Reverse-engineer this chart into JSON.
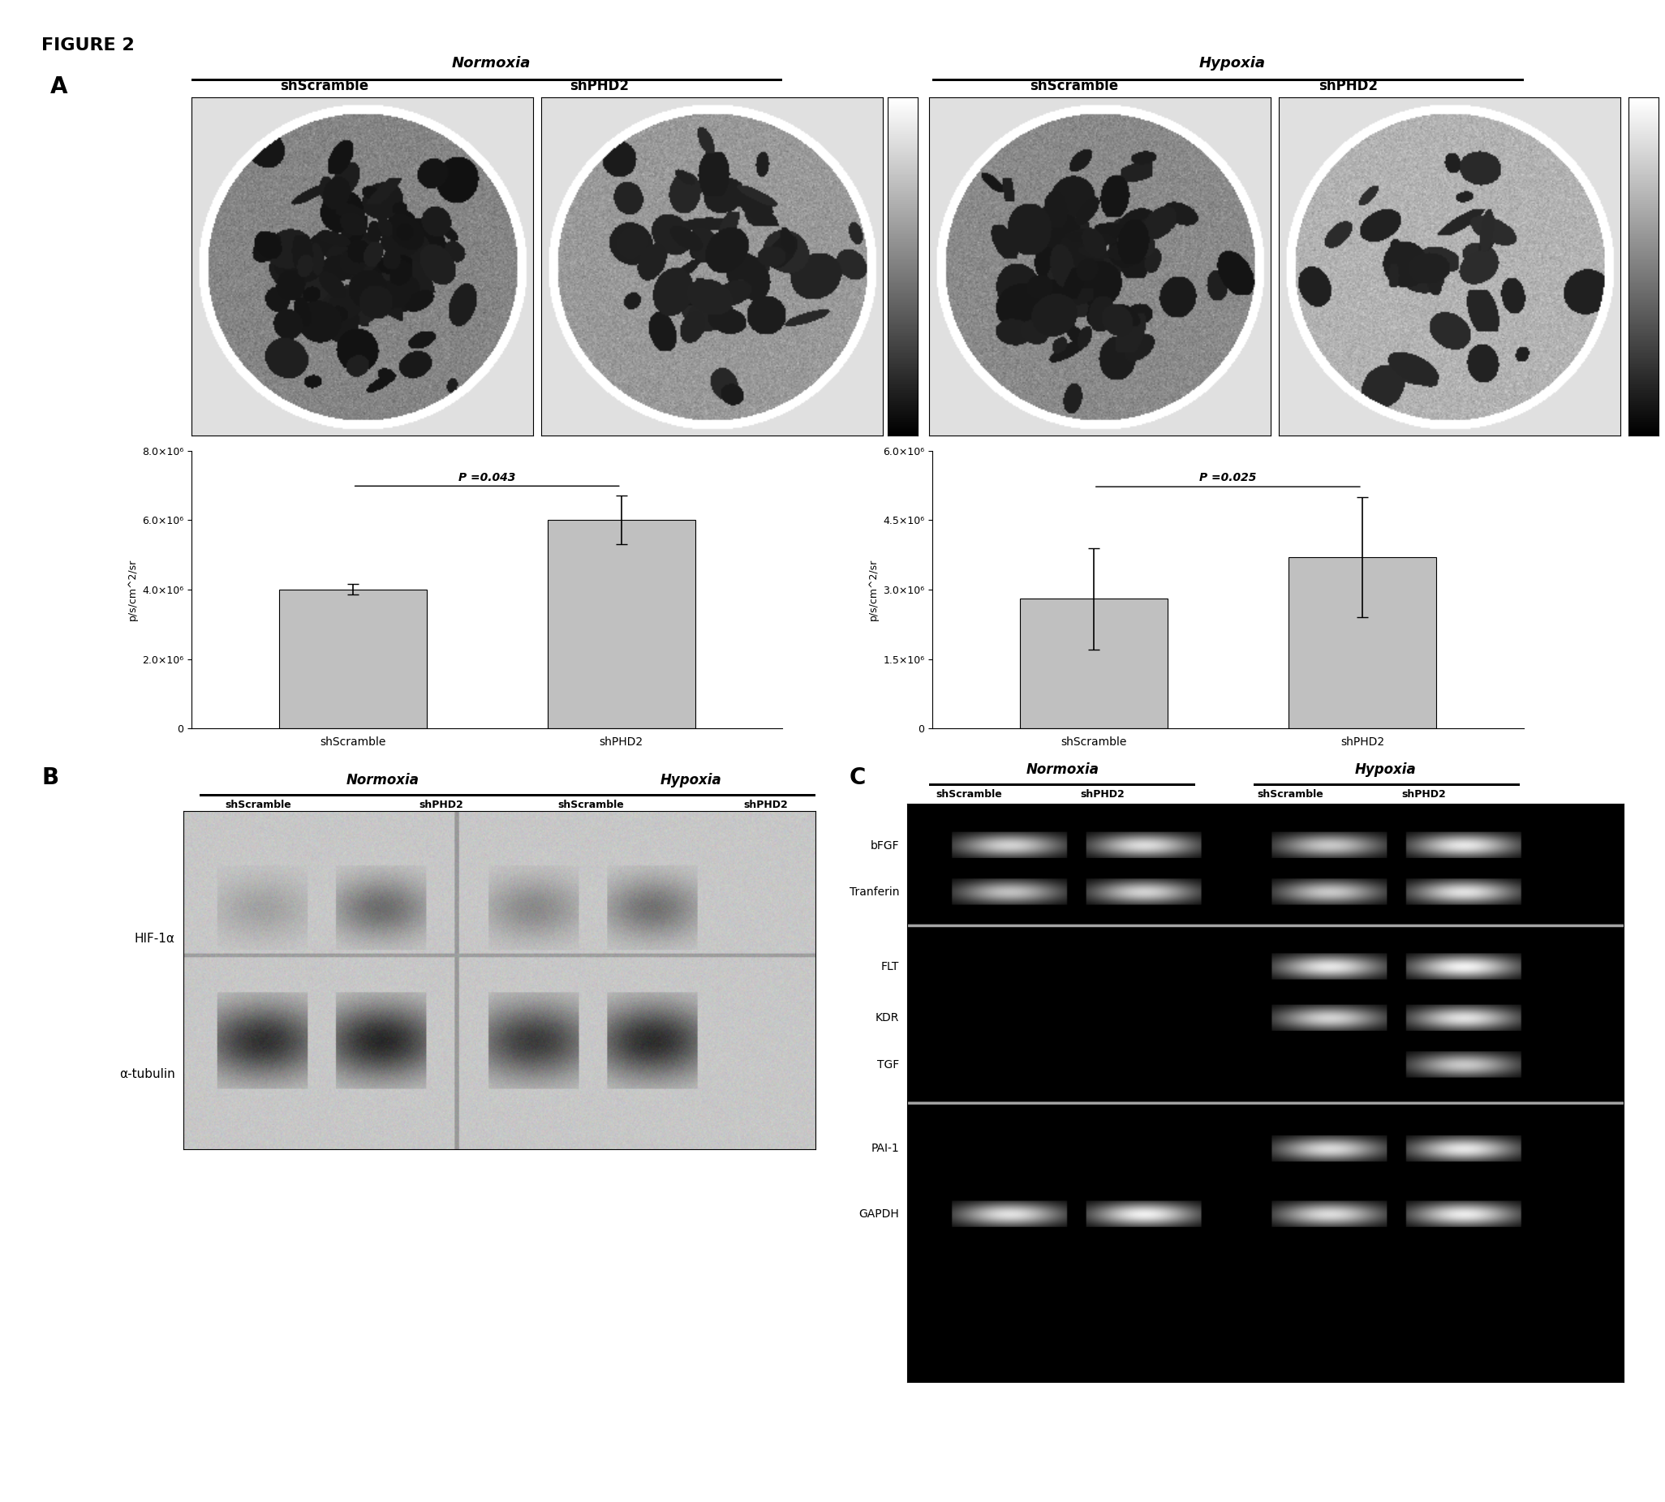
{
  "figure_title": "FIGURE 2",
  "panel_A_label": "A",
  "panel_B_label": "B",
  "panel_C_label": "C",
  "normoxia_label": "Normoxia",
  "hypoxia_label": "Hypoxia",
  "shScramble_label": "shScramble",
  "shPHD2_label": "shPHD2",
  "bar_normoxia": {
    "categories": [
      "shScramble",
      "shPHD2"
    ],
    "values": [
      4000000.0,
      6000000.0
    ],
    "errors": [
      150000.0,
      700000.0
    ],
    "ylabel": "p/s/cm^2/sr",
    "ylim": [
      0,
      8000000.0
    ],
    "yticks": [
      0,
      2000000.0,
      4000000.0,
      6000000.0,
      8000000.0
    ],
    "ytick_labels": [
      "0",
      "2.0×10⁶",
      "4.0×10⁶",
      "6.0×10⁶",
      "8.0×10⁶"
    ],
    "p_value": "P =0.043",
    "bar_color": "#c0c0c0"
  },
  "bar_hypoxia": {
    "categories": [
      "shScramble",
      "shPHD2"
    ],
    "values": [
      2800000.0,
      3700000.0
    ],
    "errors": [
      1100000.0,
      1300000.0
    ],
    "ylabel": "p/s/cm^2/sr",
    "ylim": [
      0,
      6000000.0
    ],
    "yticks": [
      0,
      1500000.0,
      3000000.0,
      4500000.0,
      6000000.0
    ],
    "ytick_labels": [
      "0",
      "1.5×10⁶",
      "3.0×10⁶",
      "4.5×10⁶",
      "6.0×10⁶"
    ],
    "p_value": "P =0.025",
    "bar_color": "#c0c0c0"
  },
  "western_blot_labels": [
    "HIF-1α",
    "α-tubulin"
  ],
  "western_normoxia_label": "Normoxia",
  "western_hypoxia_label": "Hypoxia",
  "western_columns": [
    "shScramble",
    "shPHD2",
    "shScramble",
    "shPHD2"
  ],
  "gel_labels": [
    "bFGF",
    "Tranferin",
    "FLT",
    "KDR",
    "TGF",
    "PAI-1",
    "GAPDH"
  ],
  "gel_normoxia": "Normoxia",
  "gel_hypoxia": "Hypoxia",
  "gel_columns": [
    "shScramble",
    "shPHD2",
    "shScramble",
    "shPHD2"
  ],
  "font_size_title": 16,
  "font_size_label": 13,
  "font_size_tick": 10,
  "font_size_axis_label": 9
}
